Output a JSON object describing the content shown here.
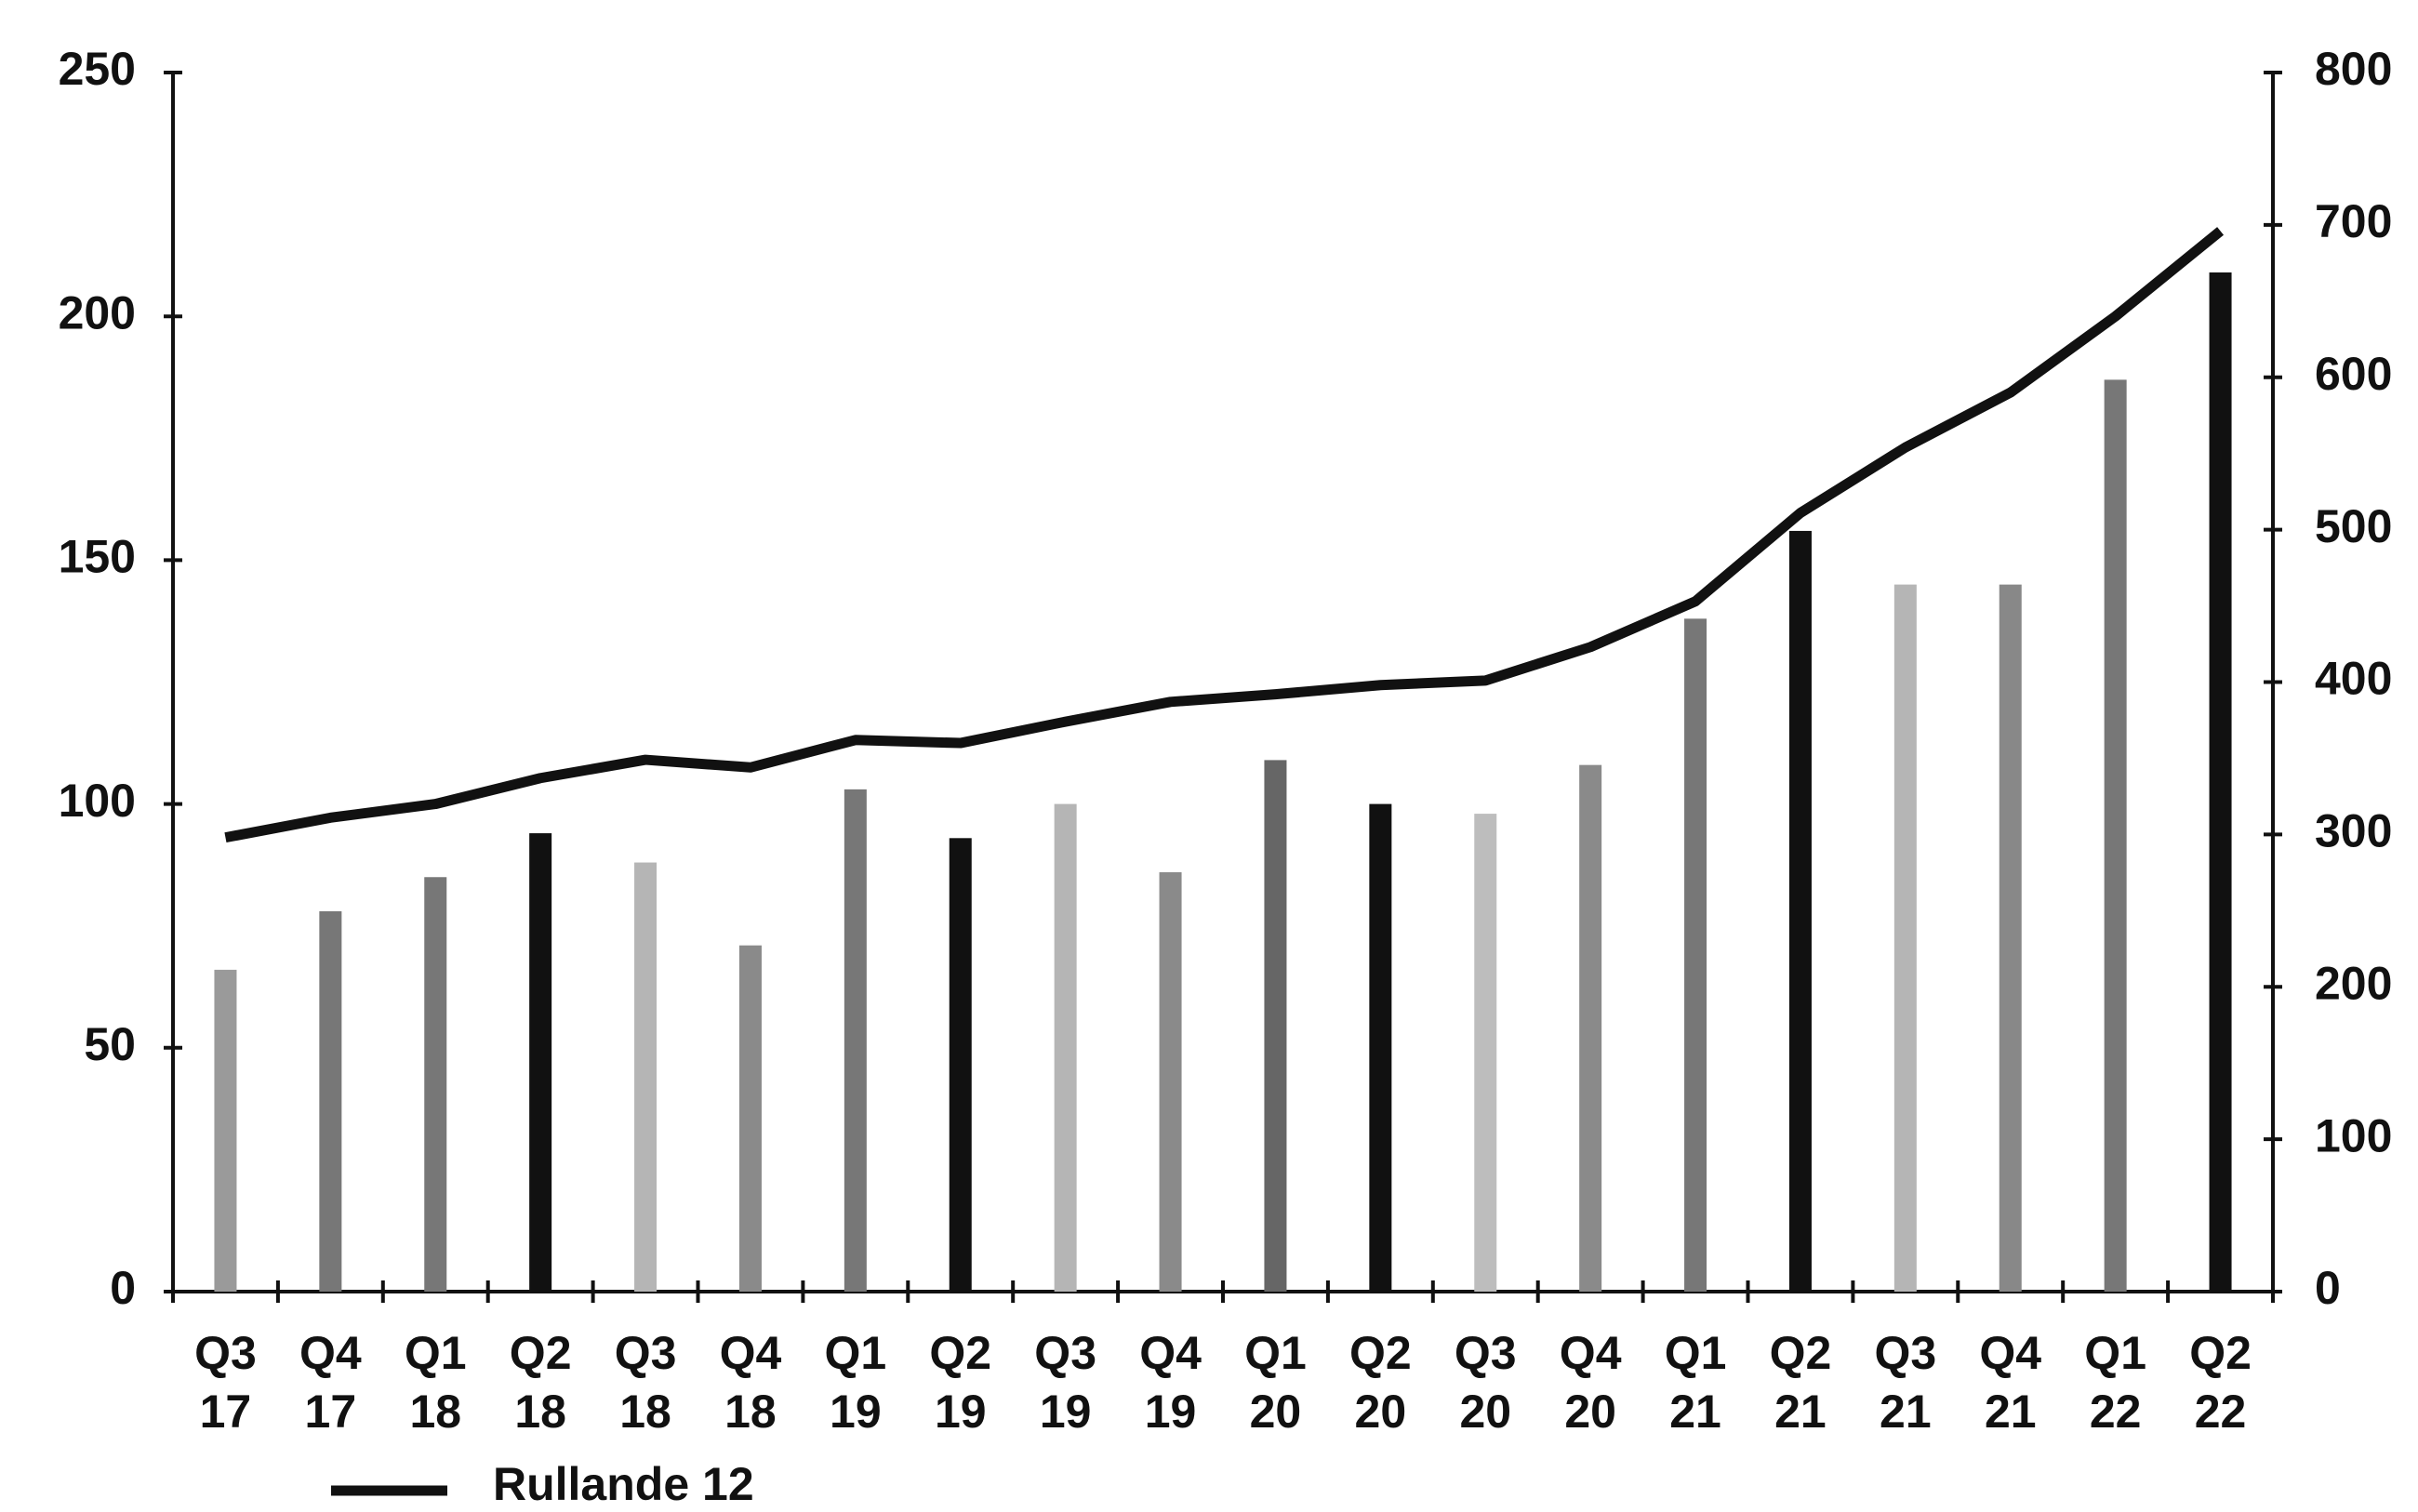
{
  "chart_data": {
    "type": "bar",
    "categories": [
      [
        "Q3",
        "17"
      ],
      [
        "Q4",
        "17"
      ],
      [
        "Q1",
        "18"
      ],
      [
        "Q2",
        "18"
      ],
      [
        "Q3",
        "18"
      ],
      [
        "Q4",
        "18"
      ],
      [
        "Q1",
        "19"
      ],
      [
        "Q2",
        "19"
      ],
      [
        "Q3",
        "19"
      ],
      [
        "Q4",
        "19"
      ],
      [
        "Q1",
        "20"
      ],
      [
        "Q2",
        "20"
      ],
      [
        "Q3",
        "20"
      ],
      [
        "Q4",
        "20"
      ],
      [
        "Q1",
        "21"
      ],
      [
        "Q2",
        "21"
      ],
      [
        "Q3",
        "21"
      ],
      [
        "Q4",
        "21"
      ],
      [
        "Q1",
        "22"
      ],
      [
        "Q2",
        "22"
      ]
    ],
    "series": [
      {
        "type": "bar",
        "values": [
          66,
          78,
          85,
          94,
          88,
          71,
          103,
          93,
          100,
          86,
          109,
          100,
          98,
          108,
          138,
          156,
          145,
          145,
          187,
          209
        ],
        "colors": [
          "#9a9a9a",
          "#777777",
          "#777777",
          "#111111",
          "#b5b5b5",
          "#8a8a8a",
          "#777777",
          "#111111",
          "#b5b5b5",
          "#8a8a8a",
          "#666666",
          "#111111",
          "#bdbdbd",
          "#8a8a8a",
          "#777777",
          "#111111",
          "#b5b5b5",
          "#888888",
          "#777777",
          "#111111"
        ]
      },
      {
        "type": "line",
        "name": "Rullande 12",
        "axis": "y2",
        "color": "#111111",
        "values": [
          298,
          311,
          320,
          337,
          349,
          344,
          362,
          360,
          374,
          387,
          392,
          398,
          401,
          423,
          453,
          511,
          554,
          590,
          640,
          696
        ]
      }
    ],
    "ylim": [
      0,
      250
    ],
    "yticks": [
      0,
      50,
      100,
      150,
      200,
      250
    ],
    "y2lim": [
      0,
      800
    ],
    "y2ticks": [
      0,
      100,
      200,
      300,
      400,
      500,
      600,
      700,
      800
    ],
    "grid": false,
    "legend": "bottom-left"
  }
}
